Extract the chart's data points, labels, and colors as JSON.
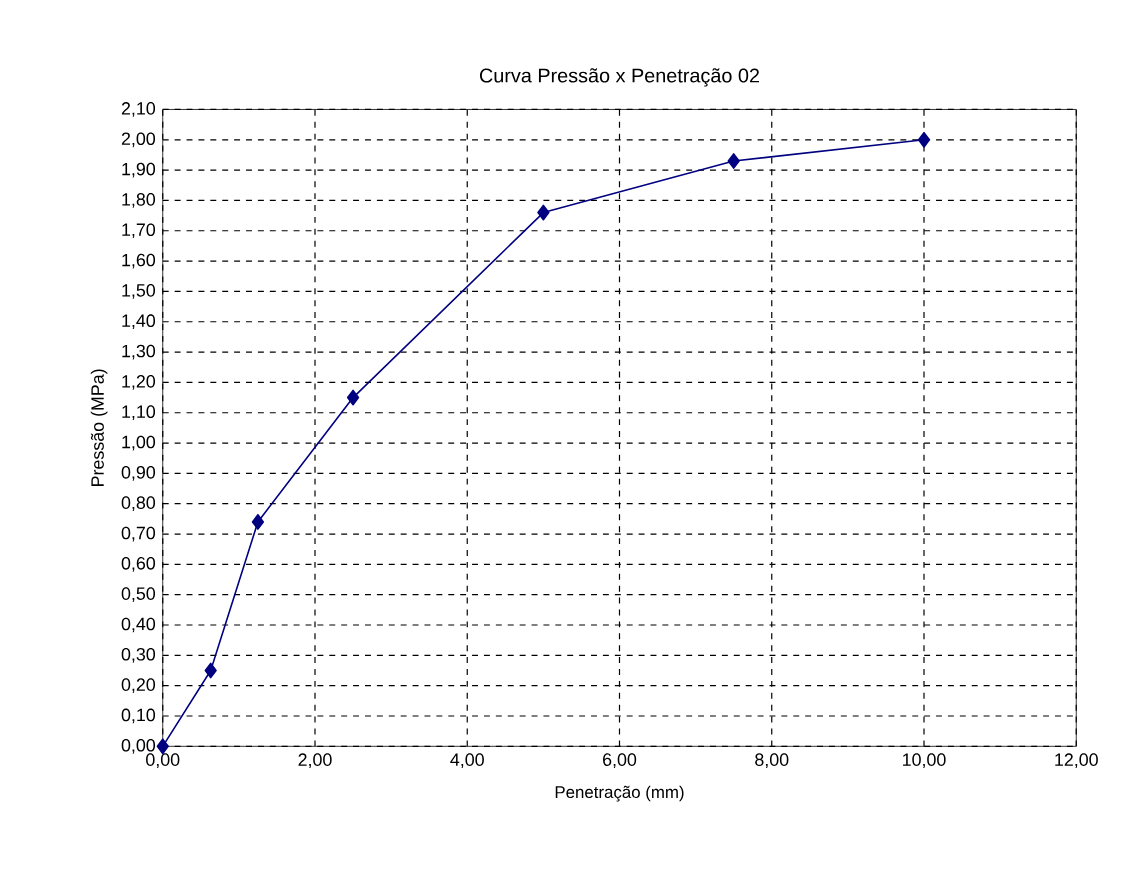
{
  "chart_data": {
    "type": "line",
    "title": "Curva  Pressão x Penetração 02",
    "xlabel": "Penetração (mm)",
    "ylabel": "Pressão  (MPa)",
    "x": [
      0,
      0.63,
      1.25,
      2.5,
      5,
      7.5,
      10
    ],
    "series": [
      {
        "color": "#000080",
        "values": [
          0,
          0.25,
          0.74,
          1.15,
          1.76,
          1.93,
          2.0
        ]
      }
    ],
    "xlim": [
      0,
      12
    ],
    "ylim": [
      0,
      2.1
    ],
    "xticks": [
      {
        "value": 0,
        "label": "0,00"
      },
      {
        "value": 2,
        "label": "2,00"
      },
      {
        "value": 4,
        "label": "4,00"
      },
      {
        "value": 6,
        "label": "6,00"
      },
      {
        "value": 8,
        "label": "8,00"
      },
      {
        "value": 10,
        "label": "10,00"
      },
      {
        "value": 12,
        "label": "12,00"
      }
    ],
    "yticks": [
      {
        "value": 0,
        "label": "0,00"
      },
      {
        "value": 0.1,
        "label": "0,10"
      },
      {
        "value": 0.2,
        "label": "0,20"
      },
      {
        "value": 0.3,
        "label": "0,30"
      },
      {
        "value": 0.4,
        "label": "0,40"
      },
      {
        "value": 0.5,
        "label": "0,50"
      },
      {
        "value": 0.6,
        "label": "0,60"
      },
      {
        "value": 0.7,
        "label": "0,70"
      },
      {
        "value": 0.8,
        "label": "0,80"
      },
      {
        "value": 0.9,
        "label": "0,90"
      },
      {
        "value": 1.0,
        "label": "1,00"
      },
      {
        "value": 1.1,
        "label": "1,10"
      },
      {
        "value": 1.2,
        "label": "1,20"
      },
      {
        "value": 1.3,
        "label": "1,30"
      },
      {
        "value": 1.4,
        "label": "1,40"
      },
      {
        "value": 1.5,
        "label": "1,50"
      },
      {
        "value": 1.6,
        "label": "1,60"
      },
      {
        "value": 1.7,
        "label": "1,70"
      },
      {
        "value": 1.8,
        "label": "1,80"
      },
      {
        "value": 1.9,
        "label": "1,90"
      },
      {
        "value": 2.0,
        "label": "2,00"
      },
      {
        "value": 2.1,
        "label": "2,10"
      }
    ],
    "grid": true,
    "marker": "diamond",
    "line_style": "solid"
  }
}
